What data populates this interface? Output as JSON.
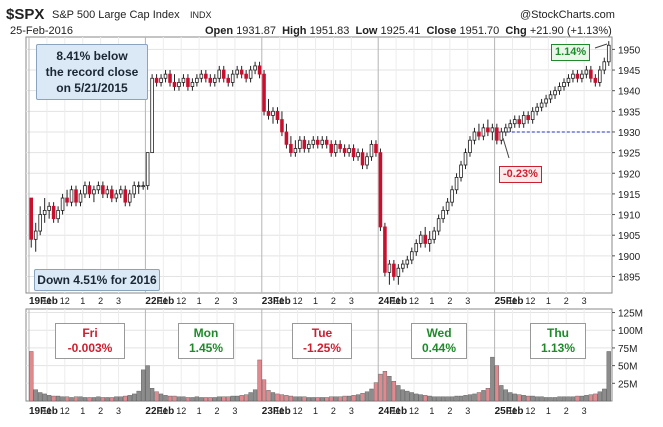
{
  "header": {
    "symbol": "$SPX",
    "name": "S&P 500 Large Cap Index",
    "exchange": "INDX",
    "copyright": "@StockCharts.com",
    "date": "25-Feb-2016",
    "open_label": "Open",
    "open": "1931.87",
    "high_label": "High",
    "high": "1951.83",
    "low_label": "Low",
    "low": "1925.41",
    "close_label": "Close",
    "close": "1951.70",
    "chg_label": "Chg",
    "chg": "+21.90 (+1.13%)"
  },
  "annotations": {
    "record_note_1": "8.41% below",
    "record_note_2": "the record close",
    "record_note_3": "on 5/21/2015",
    "ytd_note": "Down 4.51% for 2016",
    "last_gain": "1.14%",
    "dip": "-0.23%"
  },
  "days": [
    {
      "name": "Fri",
      "pct": "-0.003%",
      "color": "#cc1f2f"
    },
    {
      "name": "Mon",
      "pct": "1.45%",
      "color": "#1f8a2a"
    },
    {
      "name": "Tue",
      "pct": "-1.25%",
      "color": "#cc1f2f"
    },
    {
      "name": "Wed",
      "pct": "0.44%",
      "color": "#1f8a2a"
    },
    {
      "name": "Thu",
      "pct": "1.13%",
      "color": "#1f8a2a"
    }
  ],
  "chart_data": {
    "type": "candlestick",
    "price_axis": {
      "ticks": [
        1895,
        1900,
        1905,
        1910,
        1915,
        1920,
        1925,
        1930,
        1935,
        1940,
        1945,
        1950
      ],
      "range": [
        1891,
        1953
      ]
    },
    "volume_axis": {
      "ticks": [
        "25M",
        "50M",
        "75M",
        "100M",
        "125M"
      ],
      "values": [
        25,
        50,
        75,
        100,
        125
      ],
      "range": [
        0,
        130
      ]
    },
    "reference_line": 1930,
    "x_ticks": [
      "19Feb",
      "11",
      "12",
      "1",
      "2",
      "3",
      "22Feb",
      "11",
      "12",
      "1",
      "2",
      "3",
      "23Feb",
      "11",
      "12",
      "1",
      "2",
      "3",
      "24Feb",
      "11",
      "12",
      "1",
      "2",
      "3",
      "25Feb",
      "11",
      "12",
      "1",
      "2",
      "3"
    ],
    "bars_per_day": 26,
    "ohlc": [
      [
        1914,
        1914,
        1902,
        1904
      ],
      [
        1904,
        1908,
        1901,
        1906
      ],
      [
        1906,
        1912,
        1905,
        1910
      ],
      [
        1910,
        1914,
        1908,
        1911
      ],
      [
        1911,
        1913,
        1909,
        1912
      ],
      [
        1912,
        1913,
        1908,
        1909
      ],
      [
        1909,
        1912,
        1908,
        1911
      ],
      [
        1911,
        1915,
        1910,
        1914
      ],
      [
        1914,
        1916,
        1912,
        1913
      ],
      [
        1913,
        1917,
        1912,
        1916
      ],
      [
        1916,
        1917,
        1912,
        1913
      ],
      [
        1913,
        1916,
        1912,
        1915
      ],
      [
        1915,
        1918,
        1914,
        1917
      ],
      [
        1917,
        1918,
        1914,
        1915
      ],
      [
        1915,
        1917,
        1913,
        1916
      ],
      [
        1916,
        1918,
        1915,
        1917
      ],
      [
        1917,
        1918,
        1914,
        1915
      ],
      [
        1915,
        1917,
        1914,
        1916
      ],
      [
        1916,
        1917,
        1913,
        1914
      ],
      [
        1914,
        1916,
        1913,
        1915
      ],
      [
        1915,
        1917,
        1914,
        1916
      ],
      [
        1916,
        1917,
        1912,
        1913
      ],
      [
        1913,
        1916,
        1912,
        1915
      ],
      [
        1915,
        1918,
        1914,
        1917
      ],
      [
        1917,
        1918,
        1915,
        1917
      ],
      [
        1917,
        1918,
        1916,
        1917
      ],
      [
        1917,
        1925,
        1916,
        1925
      ],
      [
        1925,
        1944,
        1925,
        1943
      ],
      [
        1943,
        1944,
        1941,
        1942
      ],
      [
        1942,
        1944,
        1941,
        1943
      ],
      [
        1943,
        1945,
        1942,
        1944
      ],
      [
        1944,
        1945,
        1941,
        1942
      ],
      [
        1942,
        1944,
        1940,
        1941
      ],
      [
        1941,
        1943,
        1940,
        1942
      ],
      [
        1942,
        1944,
        1941,
        1943
      ],
      [
        1943,
        1944,
        1940,
        1941
      ],
      [
        1941,
        1943,
        1940,
        1942
      ],
      [
        1942,
        1944,
        1941,
        1943
      ],
      [
        1943,
        1945,
        1942,
        1944
      ],
      [
        1944,
        1945,
        1942,
        1943
      ],
      [
        1943,
        1944,
        1941,
        1942
      ],
      [
        1942,
        1944,
        1941,
        1943
      ],
      [
        1943,
        1946,
        1942,
        1945
      ],
      [
        1945,
        1946,
        1942,
        1943
      ],
      [
        1943,
        1944,
        1941,
        1942
      ],
      [
        1942,
        1945,
        1941,
        1944
      ],
      [
        1944,
        1946,
        1943,
        1945
      ],
      [
        1945,
        1946,
        1943,
        1944
      ],
      [
        1944,
        1945,
        1942,
        1943
      ],
      [
        1943,
        1946,
        1942,
        1945
      ],
      [
        1945,
        1947,
        1944,
        1946
      ],
      [
        1946,
        1947,
        1943,
        1944
      ],
      [
        1944,
        1945,
        1934,
        1935
      ],
      [
        1935,
        1938,
        1933,
        1934
      ],
      [
        1934,
        1936,
        1932,
        1935
      ],
      [
        1935,
        1936,
        1932,
        1933
      ],
      [
        1933,
        1935,
        1929,
        1930
      ],
      [
        1930,
        1932,
        1926,
        1927
      ],
      [
        1927,
        1929,
        1924,
        1925
      ],
      [
        1925,
        1928,
        1924,
        1926
      ],
      [
        1926,
        1929,
        1925,
        1928
      ],
      [
        1928,
        1929,
        1925,
        1926
      ],
      [
        1926,
        1928,
        1925,
        1927
      ],
      [
        1927,
        1929,
        1926,
        1928
      ],
      [
        1928,
        1929,
        1926,
        1927
      ],
      [
        1927,
        1929,
        1926,
        1928
      ],
      [
        1928,
        1929,
        1926,
        1927
      ],
      [
        1927,
        1928,
        1924,
        1925
      ],
      [
        1925,
        1928,
        1924,
        1927
      ],
      [
        1927,
        1928,
        1925,
        1926
      ],
      [
        1926,
        1927,
        1924,
        1925
      ],
      [
        1925,
        1927,
        1924,
        1926
      ],
      [
        1926,
        1927,
        1923,
        1924
      ],
      [
        1924,
        1926,
        1923,
        1925
      ],
      [
        1925,
        1926,
        1921,
        1922
      ],
      [
        1922,
        1925,
        1921,
        1924
      ],
      [
        1924,
        1928,
        1923,
        1927
      ],
      [
        1927,
        1928,
        1924,
        1925
      ],
      [
        1925,
        1926,
        1906,
        1907
      ],
      [
        1907,
        1908,
        1895,
        1896
      ],
      [
        1896,
        1899,
        1893,
        1898
      ],
      [
        1898,
        1899,
        1894,
        1895
      ],
      [
        1895,
        1898,
        1893,
        1897
      ],
      [
        1897,
        1899,
        1896,
        1898
      ],
      [
        1898,
        1900,
        1897,
        1899
      ],
      [
        1899,
        1902,
        1898,
        1901
      ],
      [
        1901,
        1904,
        1900,
        1903
      ],
      [
        1903,
        1906,
        1902,
        1905
      ],
      [
        1905,
        1907,
        1902,
        1903
      ],
      [
        1903,
        1906,
        1901,
        1904
      ],
      [
        1904,
        1907,
        1903,
        1906
      ],
      [
        1906,
        1910,
        1905,
        1909
      ],
      [
        1909,
        1912,
        1908,
        1911
      ],
      [
        1911,
        1914,
        1910,
        1913
      ],
      [
        1913,
        1917,
        1912,
        1916
      ],
      [
        1916,
        1920,
        1915,
        1919
      ],
      [
        1919,
        1923,
        1918,
        1922
      ],
      [
        1922,
        1926,
        1921,
        1925
      ],
      [
        1925,
        1929,
        1924,
        1928
      ],
      [
        1928,
        1931,
        1927,
        1930
      ],
      [
        1930,
        1932,
        1928,
        1929
      ],
      [
        1929,
        1932,
        1928,
        1931
      ],
      [
        1931,
        1933,
        1929,
        1930
      ],
      [
        1930,
        1932,
        1928,
        1931
      ],
      [
        1931,
        1932,
        1927,
        1928
      ],
      [
        1928,
        1931,
        1927,
        1930
      ],
      [
        1930,
        1932,
        1929,
        1931
      ],
      [
        1931,
        1933,
        1930,
        1932
      ],
      [
        1932,
        1934,
        1931,
        1933
      ],
      [
        1933,
        1934,
        1931,
        1932
      ],
      [
        1932,
        1935,
        1931,
        1934
      ],
      [
        1934,
        1935,
        1932,
        1933
      ],
      [
        1933,
        1936,
        1932,
        1935
      ],
      [
        1935,
        1937,
        1934,
        1936
      ],
      [
        1936,
        1938,
        1935,
        1937
      ],
      [
        1937,
        1939,
        1936,
        1938
      ],
      [
        1938,
        1940,
        1937,
        1939
      ],
      [
        1939,
        1941,
        1938,
        1940
      ],
      [
        1940,
        1942,
        1939,
        1941
      ],
      [
        1941,
        1943,
        1940,
        1942
      ],
      [
        1942,
        1944,
        1941,
        1943
      ],
      [
        1943,
        1945,
        1942,
        1944
      ],
      [
        1944,
        1945,
        1942,
        1943
      ],
      [
        1943,
        1945,
        1942,
        1944
      ],
      [
        1944,
        1946,
        1943,
        1945
      ],
      [
        1945,
        1946,
        1942,
        1943
      ],
      [
        1943,
        1944,
        1941,
        1942
      ],
      [
        1942,
        1946,
        1941,
        1945
      ],
      [
        1945,
        1948,
        1944,
        1947
      ],
      [
        1947,
        1952,
        1946,
        1951
      ]
    ],
    "volume": [
      70,
      16,
      12,
      10,
      8,
      7,
      7,
      6,
      6,
      5,
      6,
      6,
      5,
      5,
      5,
      6,
      5,
      5,
      5,
      6,
      6,
      7,
      8,
      10,
      14,
      44,
      50,
      18,
      13,
      10,
      8,
      7,
      7,
      6,
      6,
      5,
      5,
      6,
      5,
      5,
      5,
      5,
      6,
      6,
      6,
      7,
      7,
      8,
      9,
      12,
      16,
      58,
      30,
      15,
      12,
      10,
      9,
      8,
      7,
      6,
      6,
      6,
      5,
      5,
      5,
      5,
      5,
      6,
      6,
      6,
      7,
      7,
      8,
      9,
      11,
      13,
      17,
      26,
      38,
      42,
      35,
      28,
      22,
      16,
      14,
      12,
      10,
      9,
      8,
      7,
      6,
      6,
      6,
      6,
      6,
      7,
      7,
      8,
      9,
      10,
      12,
      15,
      18,
      62,
      50,
      22,
      16,
      12,
      10,
      9,
      8,
      7,
      7,
      6,
      6,
      5,
      5,
      5,
      6,
      6,
      6,
      6,
      7,
      7,
      8,
      9,
      10,
      13,
      17,
      70
    ]
  }
}
